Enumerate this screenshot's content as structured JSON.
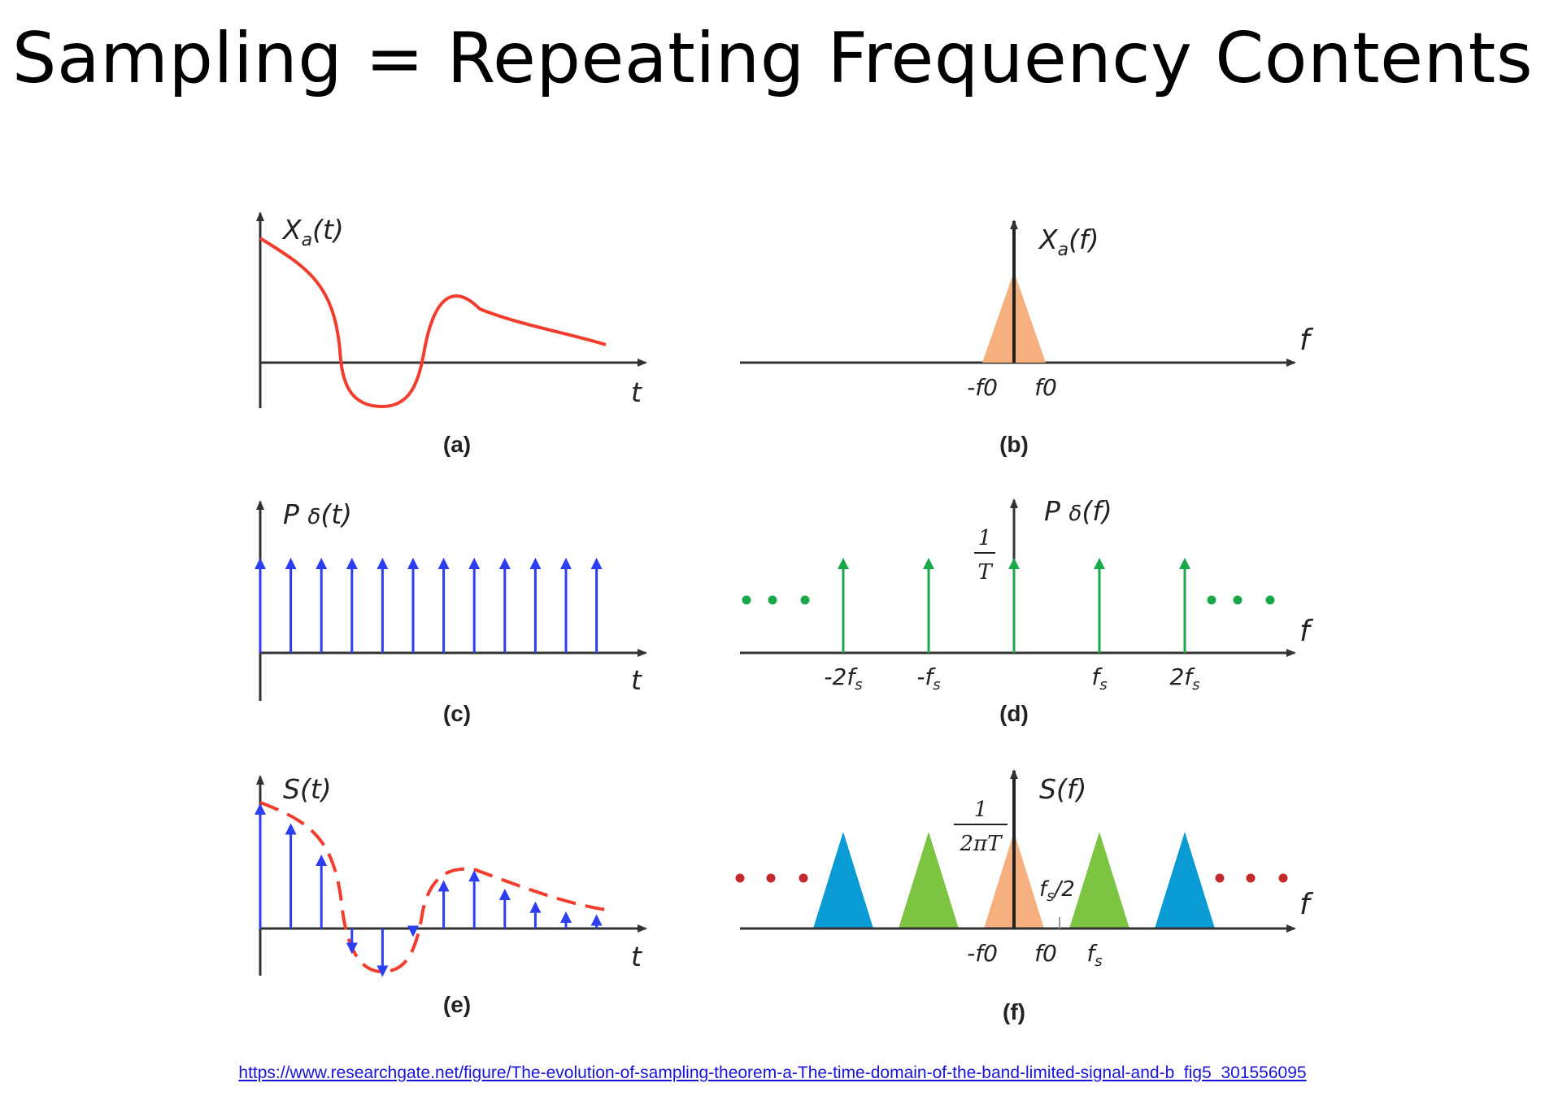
{
  "slide": {
    "title": "Sampling = Repeating Frequency Contents"
  },
  "source": {
    "url_text": "https://www.researchgate.net/figure/The-evolution-of-sampling-theorem-a-The-time-domain-of-the-band-limited-signal-and-b_fig5_301556095"
  },
  "colors": {
    "axis": "#333333",
    "signal": "#f23c2e",
    "impulse_time": "#2c3ef0",
    "impulse_freq": "#1aa84a",
    "spectrum_center": "#f6b080",
    "spectrum_first": "#7cc442",
    "spectrum_second": "#0a9ad4",
    "dots_green": "#1aa84a",
    "dots_red": "#c42a2a"
  },
  "panels": {
    "a": {
      "label": "(a)",
      "ylabel": "X",
      "ysub": "a",
      "yarg": "(t)",
      "xlabel": "t"
    },
    "b": {
      "label": "(b)",
      "ylabel": "X",
      "ysub": "a",
      "yarg": "(f)",
      "xlabel": "f",
      "ticks": [
        "-f0",
        "f0"
      ]
    },
    "c": {
      "label": "(c)",
      "ylabel": "P",
      "ysym": "δ",
      "yarg": "(t)",
      "xlabel": "t",
      "impulse_count": 12
    },
    "d": {
      "label": "(d)",
      "ylabel": "P",
      "ysym": "δ",
      "yarg": "(f)",
      "xlabel": "f",
      "height_num": "1",
      "height_den": "T",
      "impulse_positions": [
        -2,
        -1,
        0,
        1,
        2
      ],
      "ticks": [
        "-2f",
        "-f",
        "f",
        "2f"
      ],
      "tick_sub": "s"
    },
    "e": {
      "label": "(e)",
      "ylabel": "S(t)",
      "xlabel": "t",
      "sample_values": [
        0.88,
        0.74,
        0.52,
        -0.18,
        -0.34,
        -0.06,
        0.34,
        0.41,
        0.28,
        0.19,
        0.12,
        0.1
      ]
    },
    "f": {
      "label": "(f)",
      "ylabel": "S(f)",
      "xlabel": "f",
      "height_num": "1",
      "height_den": "2πT",
      "half_rate": "/2",
      "half_rate_base": "f",
      "half_rate_sub": "s",
      "ticks": [
        "-f0",
        "f0",
        "f"
      ],
      "tick_sub": "s",
      "replica_positions": [
        -2,
        -1,
        0,
        1,
        2
      ]
    }
  }
}
